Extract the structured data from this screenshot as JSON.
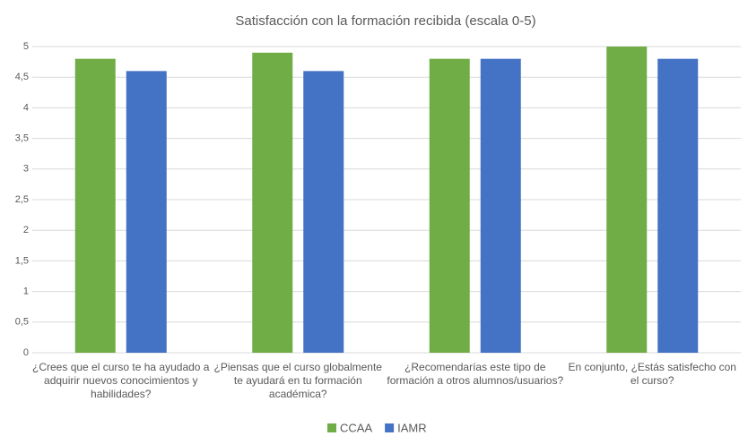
{
  "chart_data": {
    "type": "bar",
    "title": "Satisfacción con la formación recibida (escala 0-5)",
    "categories": [
      "¿Crees que el curso te ha ayudado a adquirir nuevos conocimientos y habilidades?",
      "¿Piensas que el curso globalmente te ayudará en tu formación académica?",
      "¿Recomendarías este tipo de formación a otros alumnos/usuarios?",
      "En conjunto, ¿Estás satisfecho con el curso?"
    ],
    "series": [
      {
        "name": "CCAA",
        "color": "#70ad47",
        "values": [
          4.8,
          4.9,
          4.8,
          5
        ]
      },
      {
        "name": "IAMR",
        "color": "#4472c4",
        "values": [
          4.6,
          4.6,
          4.8,
          4.8
        ]
      }
    ],
    "ylim": [
      0,
      5
    ],
    "yticks": [
      0,
      {
        "value": 0.5,
        "label": "0,5"
      },
      1,
      {
        "value": 1.5,
        "label": "1,5"
      },
      2,
      {
        "value": 2.5,
        "label": "2,5"
      },
      3,
      {
        "value": 3.5,
        "label": "3,5"
      },
      4,
      {
        "value": 4.5,
        "label": "4,5"
      },
      5
    ],
    "grid": true,
    "legend": "bottom"
  }
}
